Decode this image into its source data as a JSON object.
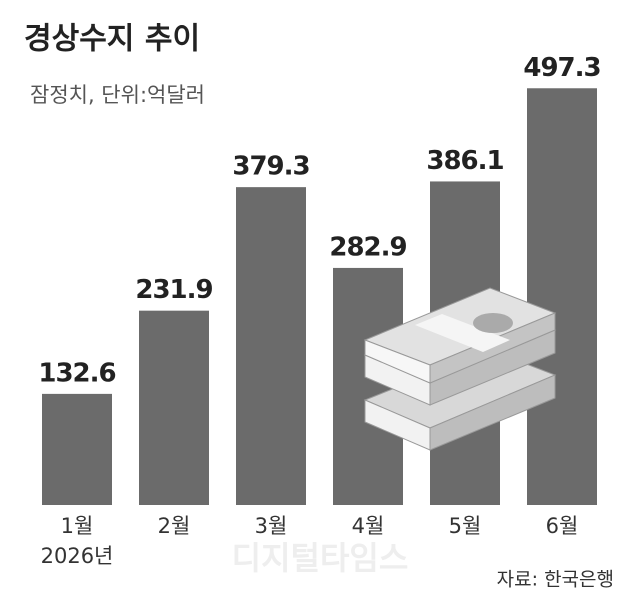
{
  "chart_data": {
    "type": "bar",
    "title": "경상수지 추이",
    "subtitle": "잠정치, 단위:억달러",
    "categories": [
      "1월",
      "2월",
      "3월",
      "4월",
      "5월",
      "6월"
    ],
    "year_label": "2026년",
    "values": [
      132.6,
      231.9,
      379.3,
      282.9,
      386.1,
      497.3
    ],
    "color": "#6b6b6b",
    "ylim": [
      0,
      500
    ],
    "source": "자료: 한국은행",
    "watermark": "디지털타임스"
  }
}
